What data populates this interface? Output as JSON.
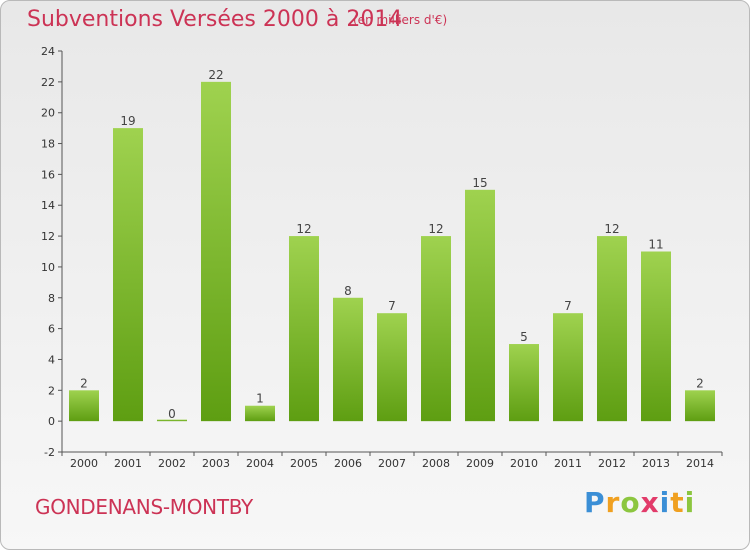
{
  "header": {
    "title": "Subventions Versées 2000 à 2014",
    "subtitle": "(en milliers d'€)"
  },
  "footer": {
    "commune": "GONDENANS-MONTBY",
    "logo_letters": [
      "P",
      "r",
      "o",
      "x",
      "i",
      "t",
      "i"
    ],
    "logo_colors": [
      "#3b8fd6",
      "#f0a020",
      "#8cc63f",
      "#e23b6a",
      "#3b8fd6",
      "#f0a020",
      "#8cc63f"
    ]
  },
  "colors": {
    "bar_top": "#9fd24f",
    "bar_bottom": "#5e9e12",
    "title": "#cc3355"
  },
  "chart_data": {
    "type": "bar",
    "title": "Subventions Versées 2000 à 2014",
    "subtitle": "(en milliers d'€)",
    "categories": [
      "2000",
      "2001",
      "2002",
      "2003",
      "2004",
      "2005",
      "2006",
      "2007",
      "2008",
      "2009",
      "2010",
      "2011",
      "2012",
      "2013",
      "2014"
    ],
    "values": [
      2,
      19,
      0,
      22,
      1,
      12,
      8,
      7,
      12,
      15,
      5,
      7,
      12,
      11,
      2
    ],
    "ylim": [
      -2,
      24
    ],
    "yticks": [
      -2,
      0,
      2,
      4,
      6,
      8,
      10,
      12,
      14,
      16,
      18,
      20,
      22,
      24
    ],
    "grid": false,
    "data_labels": true
  }
}
